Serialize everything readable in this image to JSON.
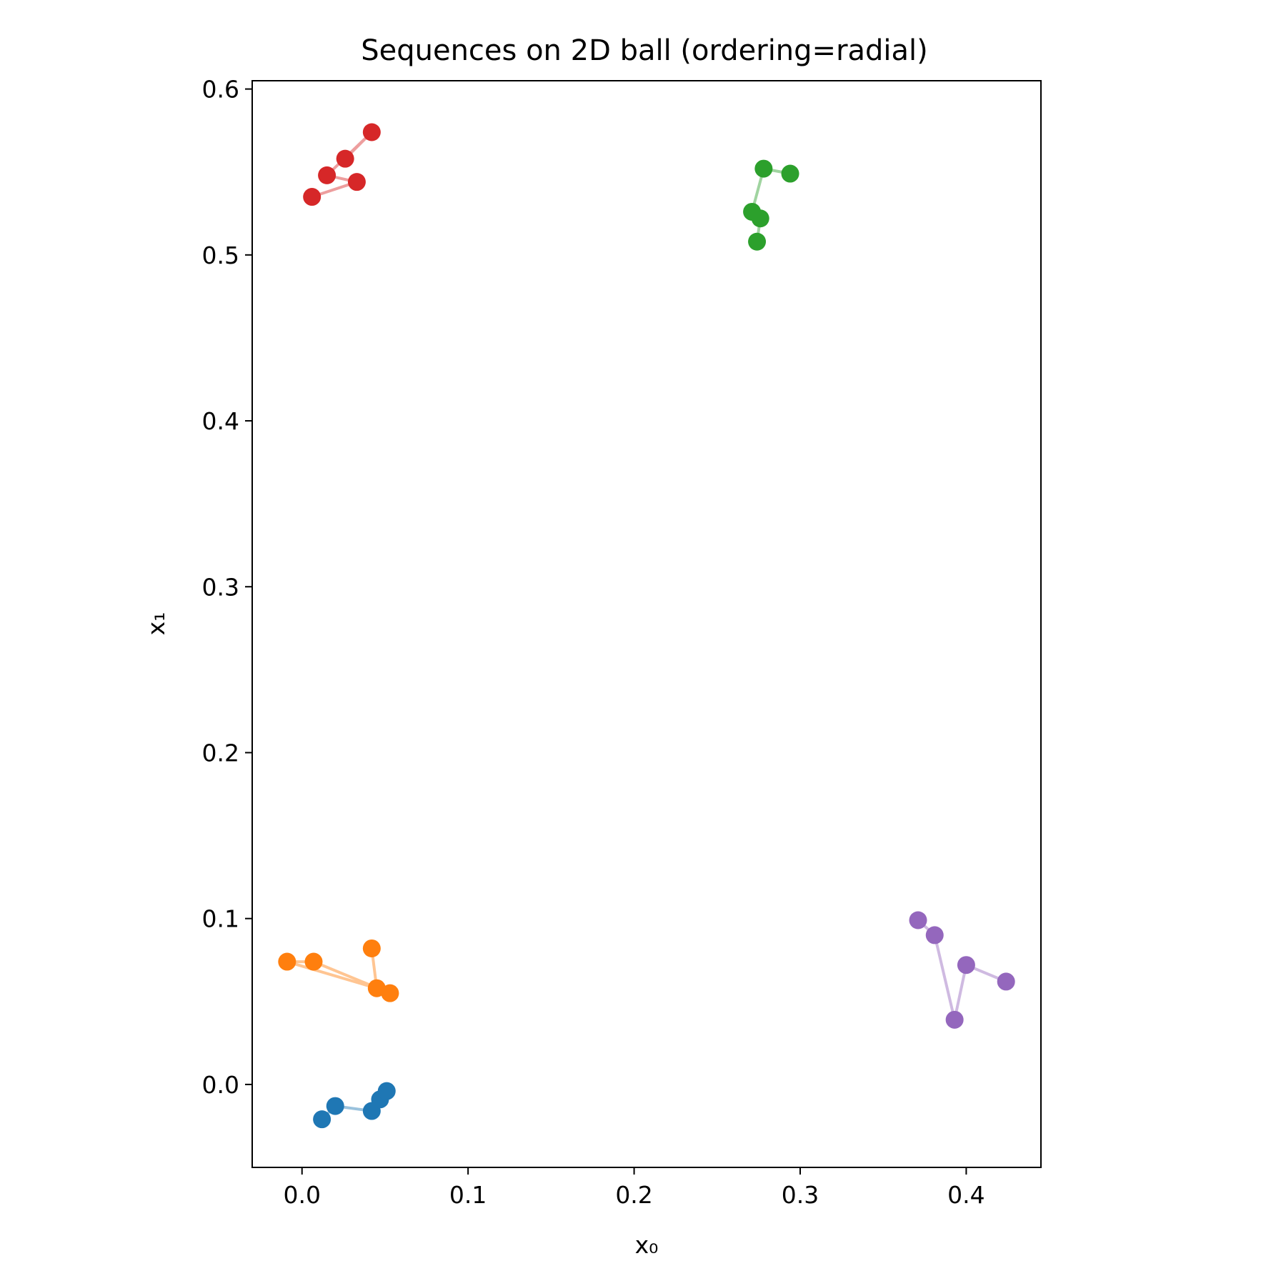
{
  "chart_data": {
    "type": "scatter",
    "title": "Sequences on 2D ball (ordering=radial)",
    "xlabel": "x₀",
    "ylabel": "x₁",
    "xlim": [
      -0.03,
      0.445
    ],
    "ylim": [
      -0.05,
      0.605
    ],
    "xticks": [
      "0.0",
      "0.1",
      "0.2",
      "0.3",
      "0.4"
    ],
    "yticks": [
      "0.0",
      "0.1",
      "0.2",
      "0.3",
      "0.4",
      "0.5",
      "0.6"
    ],
    "grid": false,
    "series": [
      {
        "color": "#1f77b4",
        "points": [
          [
            0.012,
            -0.021
          ],
          [
            0.02,
            -0.013
          ],
          [
            0.042,
            -0.016
          ],
          [
            0.047,
            -0.009
          ],
          [
            0.051,
            -0.004
          ]
        ]
      },
      {
        "color": "#ff7f0e",
        "points": [
          [
            0.042,
            0.082
          ],
          [
            0.045,
            0.058
          ],
          [
            -0.009,
            0.074
          ],
          [
            0.007,
            0.074
          ],
          [
            0.053,
            0.055
          ]
        ]
      },
      {
        "color": "#2ca02c",
        "points": [
          [
            0.294,
            0.549
          ],
          [
            0.278,
            0.552
          ],
          [
            0.271,
            0.526
          ],
          [
            0.276,
            0.522
          ],
          [
            0.274,
            0.508
          ]
        ]
      },
      {
        "color": "#d62728",
        "points": [
          [
            0.026,
            0.558
          ],
          [
            0.042,
            0.574
          ],
          [
            0.015,
            0.548
          ],
          [
            0.033,
            0.544
          ],
          [
            0.006,
            0.535
          ]
        ]
      },
      {
        "color": "#9467bd",
        "points": [
          [
            0.371,
            0.099
          ],
          [
            0.381,
            0.09
          ],
          [
            0.393,
            0.039
          ],
          [
            0.4,
            0.072
          ],
          [
            0.424,
            0.062
          ]
        ]
      }
    ]
  }
}
